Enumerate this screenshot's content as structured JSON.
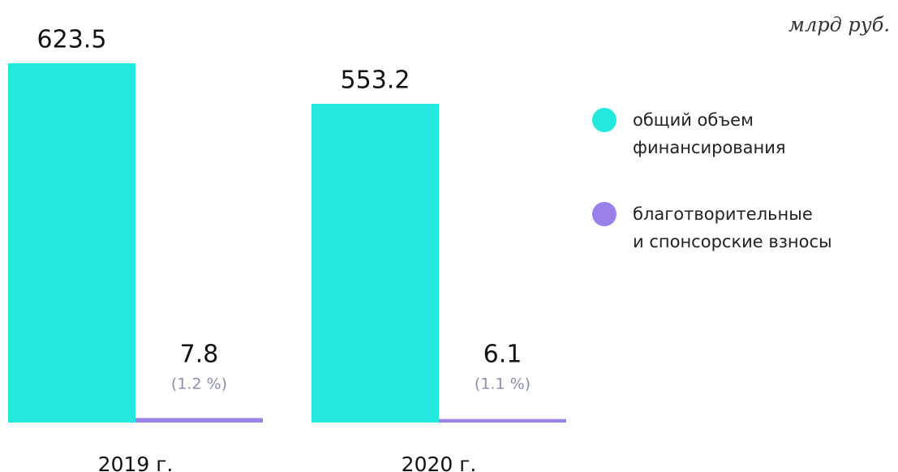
{
  "chart_data": {
    "type": "bar",
    "unit": "млрд руб.",
    "categories": [
      "2019 г.",
      "2020 г."
    ],
    "series": [
      {
        "name": "общий объем\nфинансирования",
        "color": "#22e8de",
        "values": [
          623.5,
          553.2
        ]
      },
      {
        "name": "благотворительные\nи спонсорские взносы",
        "color": "#9b82ea",
        "values": [
          7.8,
          6.1
        ],
        "share_labels": [
          "(1.2 %)",
          "(1.1 %)"
        ]
      }
    ]
  }
}
